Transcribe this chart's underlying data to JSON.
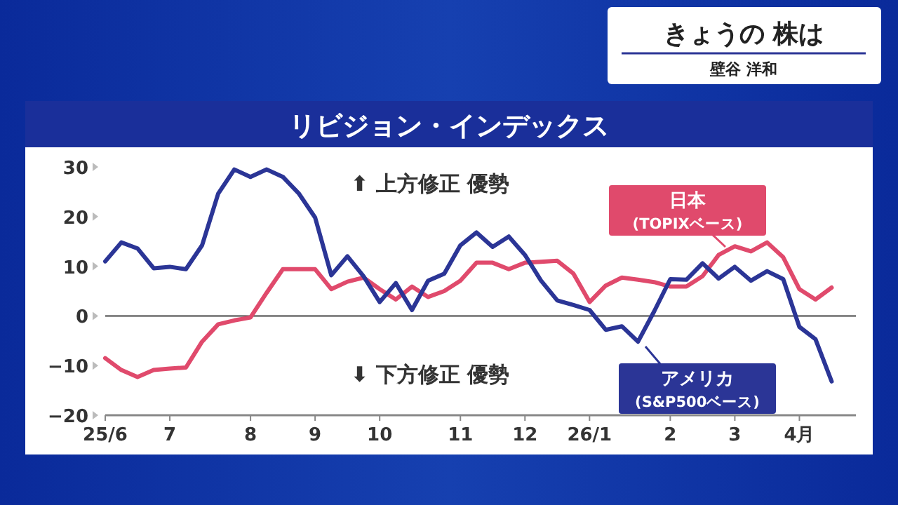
{
  "chart_data": {
    "type": "line",
    "title": "リビジョン・インデックス",
    "annotations": [
      "きょうの 株は",
      "壁谷 洋和",
      "⬆ 上方修正 優勢",
      "⬇ 下方修正 優勢"
    ],
    "categories": [
      "25/6",
      null,
      null,
      null,
      "7",
      null,
      null,
      null,
      null,
      "8",
      null,
      null,
      null,
      "9",
      null,
      null,
      null,
      "10",
      null,
      null,
      null,
      null,
      "11",
      null,
      null,
      null,
      "12",
      null,
      null,
      null,
      "26/1",
      null,
      null,
      null,
      null,
      "2",
      null,
      null,
      null,
      "3",
      null,
      null,
      null,
      "4月",
      null,
      null
    ],
    "series": [
      {
        "name": "日本 (TOPIXベース)",
        "color": "#e04a6c",
        "values": [
          -8.5,
          -10.9,
          -12.3,
          -10.9,
          -10.6,
          -10.4,
          -5.2,
          -1.7,
          -0.9,
          -0.3,
          4.7,
          9.4,
          9.4,
          9.4,
          5.4,
          6.9,
          7.7,
          5.4,
          3.3,
          5.9,
          3.8,
          5.0,
          7.1,
          10.7,
          10.7,
          9.4,
          10.7,
          10.9,
          11.1,
          8.5,
          2.8,
          6.1,
          7.7,
          7.3,
          6.8,
          5.9,
          5.9,
          8.0,
          12.3,
          14.0,
          13.0,
          14.8,
          11.8,
          5.4,
          3.3,
          5.7
        ]
      },
      {
        "name": "アメリカ (S&P500ベース)",
        "color": "#2b3596",
        "values": [
          11.0,
          14.8,
          13.6,
          9.6,
          9.9,
          9.4,
          14.2,
          24.6,
          29.5,
          28.0,
          29.5,
          28.0,
          24.6,
          19.8,
          8.2,
          12.0,
          8.0,
          2.8,
          6.6,
          1.2,
          7.1,
          8.5,
          14.2,
          16.8,
          13.9,
          16.0,
          12.3,
          7.1,
          3.1,
          2.2,
          1.2,
          -2.8,
          -2.1,
          -5.2,
          0.9,
          7.4,
          7.3,
          10.6,
          7.5,
          9.9,
          7.1,
          9.0,
          7.4,
          -2.2,
          -4.7,
          -13.2
        ]
      }
    ],
    "ylim": [
      -20,
      30
    ],
    "yticks": [
      -20,
      -10,
      0,
      10,
      20,
      30
    ],
    "ref_lines": [
      {
        "axis": "y",
        "value": 0,
        "color": "#444444"
      }
    ],
    "grid": false,
    "marker": "none",
    "line_style": "solid"
  }
}
